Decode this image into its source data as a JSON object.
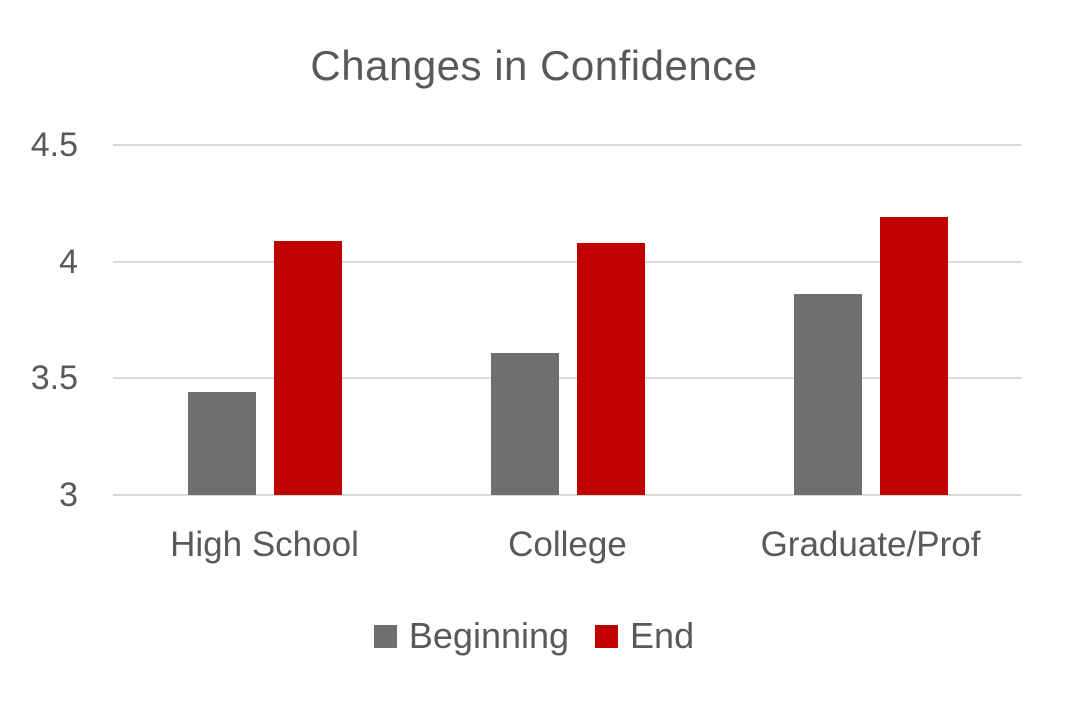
{
  "chart_data": {
    "type": "bar",
    "title": "Changes in Confidence",
    "categories": [
      "High School",
      "College",
      "Graduate/Prof"
    ],
    "series": [
      {
        "name": "Beginning",
        "color": "#6F6F6F",
        "values": [
          3.44,
          3.61,
          3.86
        ]
      },
      {
        "name": "End",
        "color": "#C00000",
        "values": [
          4.09,
          4.08,
          4.19
        ]
      }
    ],
    "ylim": [
      3,
      4.5
    ],
    "yticks": [
      {
        "value": 3,
        "label": "3"
      },
      {
        "value": 3.5,
        "label": "3.5"
      },
      {
        "value": 4,
        "label": "4"
      },
      {
        "value": 4.5,
        "label": "4.5"
      }
    ],
    "grid": true,
    "legend_position": "bottom",
    "colors": {
      "text": "#595959",
      "gridline": "#D9D9D9",
      "background": "#FFFFFF"
    }
  }
}
